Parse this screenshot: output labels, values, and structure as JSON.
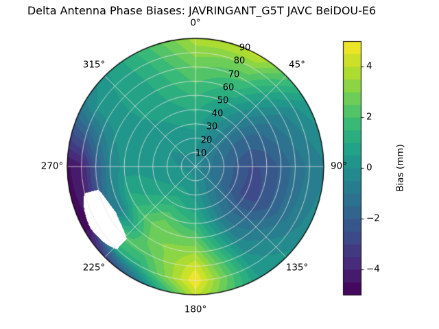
{
  "chart_data": {
    "type": "heatmap",
    "projection": "polar",
    "title": "Delta Antenna Phase Biases: JAVRINGANT_G5T  JAVC BeiDOU-E6",
    "azimuth_labels": [
      "0°",
      "45°",
      "90°",
      "135°",
      "180°",
      "225°",
      "270°",
      "315°"
    ],
    "radius_tick_labels": [
      "10",
      "20",
      "30",
      "40",
      "50",
      "60",
      "70",
      "80",
      "90"
    ],
    "azimuth_deg": [
      0,
      30,
      60,
      90,
      120,
      150,
      180,
      210,
      240,
      270,
      300,
      330
    ],
    "radius_deg": [
      0,
      10,
      20,
      30,
      40,
      50,
      60,
      70,
      80,
      90
    ],
    "contour_step_mm": 0.5,
    "values_mm": [
      [
        -0.2,
        -0.2,
        -0.2,
        -0.2,
        -0.2,
        -0.2,
        -0.2,
        -0.2,
        -0.2,
        -0.2,
        -0.2,
        -0.2
      ],
      [
        0.0,
        -0.4,
        -0.8,
        -1.0,
        -0.9,
        -0.4,
        0.0,
        0.2,
        0.1,
        0.0,
        -0.1,
        0.0
      ],
      [
        0.3,
        -0.4,
        -1.2,
        -1.6,
        -1.5,
        -0.7,
        0.3,
        0.7,
        0.4,
        0.1,
        0.0,
        0.2
      ],
      [
        0.7,
        -0.2,
        -1.5,
        -2.2,
        -2.2,
        -0.9,
        0.8,
        1.4,
        0.7,
        0.2,
        0.1,
        0.4
      ],
      [
        1.1,
        0.1,
        -1.6,
        -2.6,
        -2.7,
        -1.0,
        1.5,
        2.3,
        1.0,
        0.3,
        0.2,
        0.6
      ],
      [
        1.6,
        0.6,
        -1.4,
        -2.4,
        -2.5,
        -0.8,
        2.4,
        3.0,
        1.3,
        0.2,
        0.3,
        0.8
      ],
      [
        2.1,
        1.3,
        -1.0,
        -1.9,
        -1.9,
        -0.4,
        3.4,
        2.9,
        -0.5,
        -0.5,
        0.3,
        0.9
      ],
      [
        2.6,
        2.1,
        -0.6,
        -1.3,
        -1.2,
        0.0,
        4.4,
        2.2,
        null,
        -2.2,
        0.2,
        1.0
      ],
      [
        3.2,
        3.0,
        -0.1,
        -0.9,
        -0.7,
        0.3,
        5.0,
        1.2,
        null,
        -4.2,
        0.0,
        1.1
      ],
      [
        3.8,
        4.2,
        0.4,
        -0.6,
        -0.2,
        0.5,
        4.2,
        -1.5,
        -4.6,
        -4.6,
        -0.6,
        1.3
      ]
    ],
    "colorbar": {
      "label": "Bias (mm)",
      "ticks": [
        4,
        2,
        0,
        -2,
        -4
      ],
      "tick_labels": [
        "4",
        "2",
        "0",
        "−2",
        "−4"
      ],
      "range": [
        -5,
        5
      ]
    },
    "colors": {
      "colormap": "viridis",
      "viridis_stops": [
        "#440154",
        "#482878",
        "#3e4989",
        "#31688e",
        "#26828e",
        "#1f9e89",
        "#35b779",
        "#6ece58",
        "#b5de2b",
        "#fde725"
      ],
      "grid": "#e4e4e4",
      "outline": "#000000",
      "background": "#ffffff"
    }
  }
}
